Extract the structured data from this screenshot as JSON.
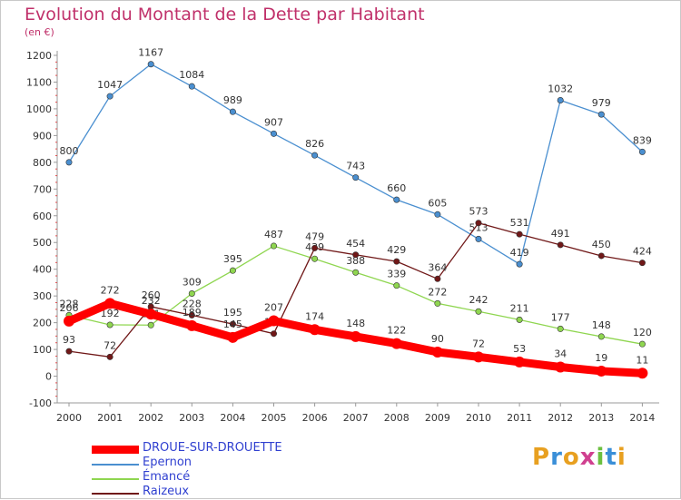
{
  "title": "Evolution du Montant de la Dette par Habitant",
  "unit": "(en €)",
  "logo": "Proxiti",
  "chart_data": {
    "type": "line",
    "x": [
      "2000",
      "2001",
      "2002",
      "2003",
      "2004",
      "2005",
      "2006",
      "2007",
      "2008",
      "2009",
      "2010",
      "2011",
      "2012",
      "2013",
      "2014"
    ],
    "ylim": [
      -100,
      1200
    ],
    "yticks": [
      -100,
      0,
      100,
      200,
      300,
      400,
      500,
      600,
      700,
      800,
      900,
      1000,
      1100,
      1200
    ],
    "grid": false,
    "legend_position": "bottom-left",
    "series": [
      {
        "name": "Epernon",
        "color": "#4a8fd0",
        "values": [
          800,
          1047,
          1167,
          1084,
          989,
          907,
          826,
          743,
          660,
          605,
          513,
          419,
          1032,
          979,
          839
        ]
      },
      {
        "name": "Émancé",
        "color": "#8fd650",
        "values": [
          228,
          192,
          191,
          309,
          395,
          487,
          439,
          388,
          339,
          272,
          242,
          211,
          177,
          148,
          120
        ]
      },
      {
        "name": "Raizeux",
        "color": "#701818",
        "values": [
          93,
          72,
          260,
          228,
          195,
          159,
          479,
          454,
          429,
          364,
          573,
          531,
          491,
          450,
          424
        ]
      },
      {
        "name": "DROUE-SUR-DROUETTE",
        "color": "#ff0000",
        "values": [
          206,
          272,
          232,
          189,
          145,
          207,
          174,
          148,
          122,
          90,
          72,
          53,
          34,
          19,
          11
        ]
      }
    ],
    "legend_order": [
      "DROUE-SUR-DROUETTE",
      "Epernon",
      "Émancé",
      "Raizeux"
    ]
  }
}
